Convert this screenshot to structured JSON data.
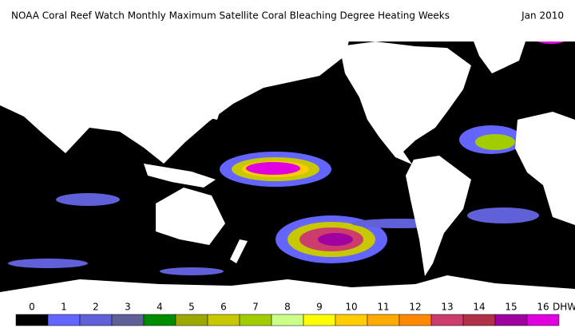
{
  "header": {
    "title": "NOAA Coral Reef Watch Monthly Maximum Satellite Coral Bleaching Degree Heating Weeks",
    "date": "Jan 2010"
  },
  "legend": {
    "unit": "DHW",
    "levels": [
      {
        "label": "0",
        "color": "#000000"
      },
      {
        "label": "1",
        "color": "#6464ff"
      },
      {
        "label": "2",
        "color": "#6060d8"
      },
      {
        "label": "3",
        "color": "#606098"
      },
      {
        "label": "4",
        "color": "#008c00"
      },
      {
        "label": "5",
        "color": "#9ca800"
      },
      {
        "label": "6",
        "color": "#c8c800"
      },
      {
        "label": "7",
        "color": "#a0cc00"
      },
      {
        "label": "8",
        "color": "#ccff88"
      },
      {
        "label": "9",
        "color": "#ffff00"
      },
      {
        "label": "10",
        "color": "#ffcc00"
      },
      {
        "label": "11",
        "color": "#ffaa00"
      },
      {
        "label": "12",
        "color": "#ff8800"
      },
      {
        "label": "13",
        "color": "#cc3c6c"
      },
      {
        "label": "14",
        "color": "#b03048"
      },
      {
        "label": "15",
        "color": "#a000a0"
      },
      {
        "label": "16",
        "color": "#e000e0"
      }
    ]
  }
}
